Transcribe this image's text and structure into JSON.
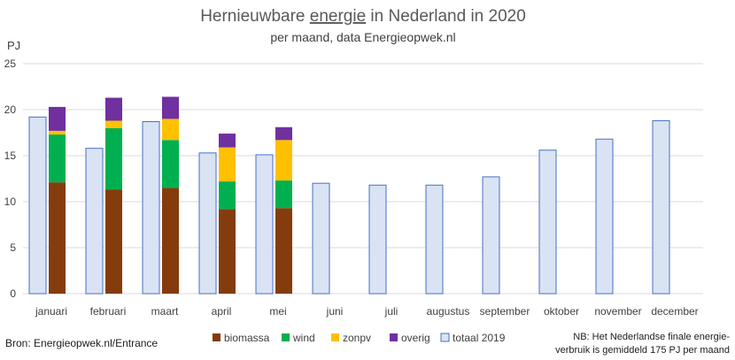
{
  "chart_data": {
    "type": "bar",
    "title_parts": [
      "Hernieuwbare ",
      "energie",
      " in Nederland in 2020"
    ],
    "subtitle": "per maand, data Energieopwek.nl",
    "ylabel": "PJ",
    "ylim": [
      0,
      25
    ],
    "yticks": [
      "0",
      "5",
      "10",
      "15",
      "20",
      "25"
    ],
    "grid": true,
    "legend_position": "bottom",
    "categories": [
      "januari",
      "februari",
      "maart",
      "april",
      "mei",
      "juni",
      "juli",
      "augustus",
      "september",
      "oktober",
      "november",
      "december"
    ],
    "reference_series": {
      "name": "totaal 2019",
      "values": [
        19.2,
        15.8,
        18.7,
        15.3,
        15.1,
        12.0,
        11.8,
        11.8,
        12.7,
        15.6,
        16.8,
        18.8
      ]
    },
    "stacked_series": [
      {
        "name": "biomassa",
        "values": [
          12.1,
          11.3,
          11.5,
          9.2,
          9.3
        ]
      },
      {
        "name": "wind",
        "values": [
          5.2,
          6.7,
          5.2,
          3.0,
          3.0
        ]
      },
      {
        "name": "zonpv",
        "values": [
          0.4,
          0.8,
          2.3,
          3.7,
          4.4
        ]
      },
      {
        "name": "overig",
        "values": [
          2.6,
          2.5,
          2.4,
          1.5,
          1.4
        ]
      }
    ],
    "legend": [
      "biomassa",
      "wind",
      "zonpv",
      "overig",
      "totaal 2019"
    ],
    "source": "Bron: Energieopwek.nl/Entrance",
    "note_lines": [
      "NB: Het Nederlandse finale energie-",
      "verbruik is gemiddeld 175 PJ per maand"
    ]
  },
  "colors": {
    "biomassa": "#843c0c",
    "wind": "#00b050",
    "zonpv": "#ffc000",
    "overig": "#7030a0",
    "totaal_fill": "#dae3f3",
    "totaal_stroke": "#4472c4",
    "grid": "#d9d9d9"
  }
}
